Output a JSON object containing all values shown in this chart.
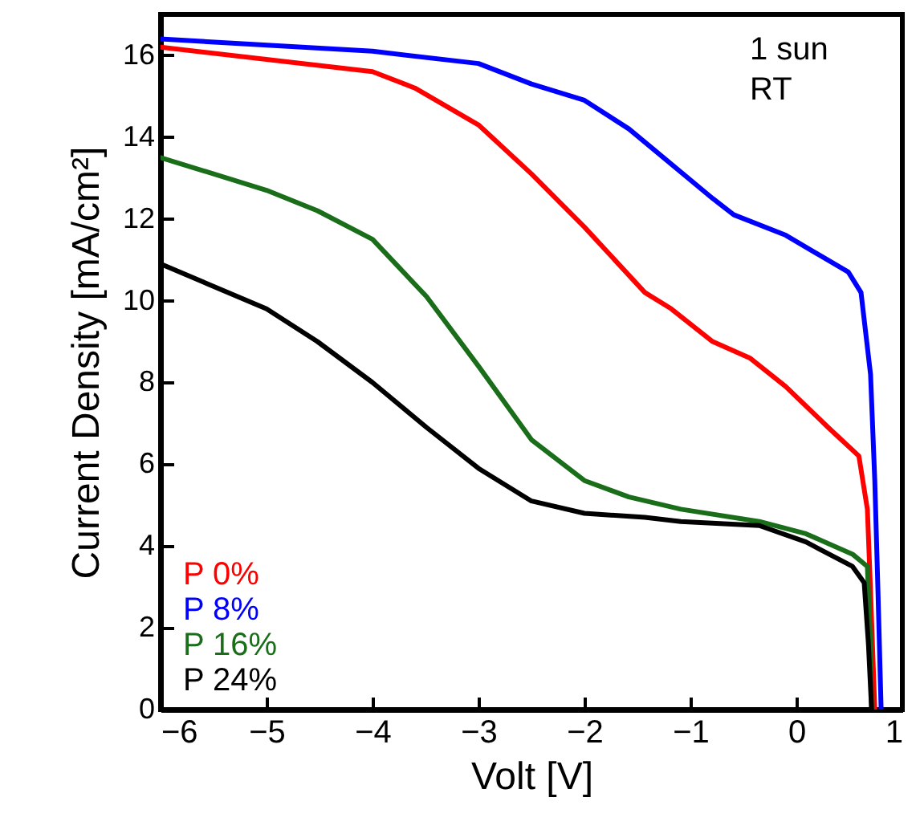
{
  "chart_data": {
    "type": "line",
    "xlabel": "Volt [V]",
    "ylabel": "Current Density [mA/cm²]",
    "xlim": [
      -6,
      1
    ],
    "ylim": [
      0,
      17
    ],
    "xticks": [
      -6,
      -5,
      -4,
      -3,
      -2,
      -1,
      0,
      1
    ],
    "yticks": [
      0,
      2,
      4,
      6,
      8,
      10,
      12,
      14,
      16
    ],
    "legend": "bottom left",
    "grid": false,
    "line_style": "solid",
    "marker": "none",
    "annotations": [
      "1 sun",
      "RT"
    ],
    "series": [
      {
        "name": "P 0%",
        "color": "#ff0000",
        "x": [
          -6,
          -4,
          -3.6,
          -3,
          -2.5,
          -2,
          -1.43,
          -1.18,
          -0.79,
          -0.44,
          -0.1,
          0.3,
          0.59,
          0.67,
          0.7,
          0.74
        ],
        "values": [
          16.2,
          15.6,
          15.2,
          14.3,
          13.1,
          11.8,
          10.2,
          9.8,
          9.0,
          8.6,
          7.9,
          6.9,
          6.2,
          4.9,
          2.9,
          0
        ]
      },
      {
        "name": "P 8%",
        "color": "#0000ff",
        "x": [
          -6,
          -4,
          -3,
          -2.5,
          -2,
          -1.58,
          -0.79,
          -0.59,
          -0.1,
          0.49,
          0.61,
          0.7,
          0.74,
          0.77,
          0.8
        ],
        "values": [
          16.4,
          16.1,
          15.8,
          15.3,
          14.9,
          14.2,
          12.5,
          12.1,
          11.6,
          10.7,
          10.2,
          8.2,
          5.6,
          2.9,
          0
        ]
      },
      {
        "name": "P 16%",
        "color": "#1a6e1a",
        "x": [
          -6,
          -5,
          -4.52,
          -4,
          -3.49,
          -3,
          -2.5,
          -2,
          -1.58,
          -1.09,
          -0.35,
          0.09,
          0.53,
          0.67,
          0.7,
          0.71
        ],
        "values": [
          13.5,
          12.7,
          12.2,
          11.5,
          10.1,
          8.4,
          6.6,
          5.6,
          5.2,
          4.9,
          4.6,
          4.3,
          3.8,
          3.5,
          1.6,
          0
        ]
      },
      {
        "name": "P 24%",
        "color": "#000000",
        "x": [
          -6,
          -5,
          -4.52,
          -4,
          -3.49,
          -3,
          -2.5,
          -2,
          -1.43,
          -1.09,
          -0.35,
          0.09,
          0.53,
          0.64,
          0.68,
          0.71
        ],
        "values": [
          10.9,
          9.8,
          9.0,
          8.0,
          6.9,
          5.9,
          5.1,
          4.8,
          4.7,
          4.6,
          4.5,
          4.1,
          3.5,
          3.1,
          1.6,
          0
        ]
      }
    ]
  }
}
